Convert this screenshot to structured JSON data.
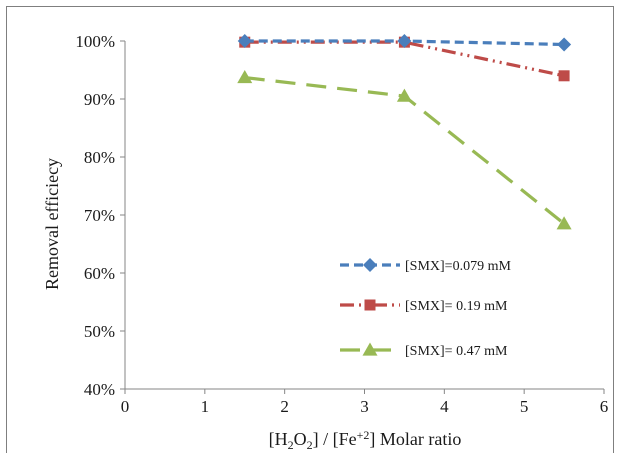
{
  "chart_data": {
    "type": "line",
    "title": "",
    "xlabel": "[H₂O₂] / [Fe⁺²] Molar ratio",
    "xlabel_parts": [
      "[H",
      "2",
      "O",
      "2",
      "] / [Fe",
      "+2",
      "] Molar ratio"
    ],
    "ylabel": "Removal efficiecy",
    "xlim": [
      0,
      6
    ],
    "ylim": [
      40,
      100
    ],
    "x_ticks": [
      0,
      1,
      2,
      3,
      4,
      5,
      6
    ],
    "y_ticks": [
      40,
      50,
      60,
      70,
      80,
      90,
      100
    ],
    "y_tick_labels": [
      "40%",
      "50%",
      "60%",
      "70%",
      "80%",
      "90%",
      "100%"
    ],
    "grid": false,
    "legend_position": "inside-right",
    "series": [
      {
        "name": "[SMX]=0.079 mM",
        "x": [
          1.5,
          3.5,
          5.5
        ],
        "y": [
          100,
          100,
          99.4
        ],
        "color": "#4a7ebb",
        "marker": "diamond",
        "dash": "short-dash"
      },
      {
        "name": "[SMX]= 0.19 mM",
        "x": [
          1.5,
          3.5,
          5.5
        ],
        "y": [
          99.8,
          99.8,
          94
        ],
        "color": "#be4b48",
        "marker": "square",
        "dash": "dash-dot-dot"
      },
      {
        "name": "[SMX]= 0.47 mM",
        "x": [
          1.5,
          3.5,
          5.5
        ],
        "y": [
          93.7,
          90.5,
          68.5
        ],
        "color": "#98b954",
        "marker": "triangle",
        "dash": "long-dash"
      }
    ]
  }
}
